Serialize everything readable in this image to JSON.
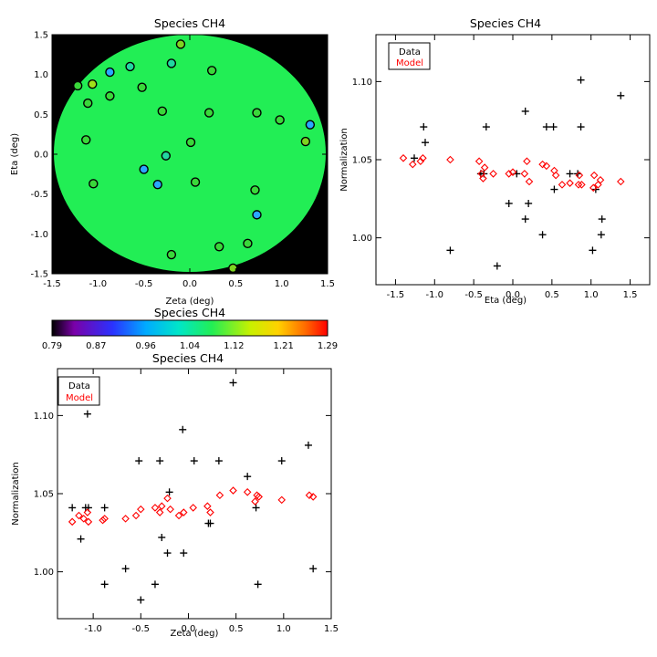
{
  "chart_data": [
    {
      "id": "map",
      "type": "scatter",
      "title": "Species CH4",
      "xlabel": "Zeta (deg)",
      "ylabel": "Eta (deg)",
      "xlim": [
        -1.5,
        1.5
      ],
      "ylim": [
        -1.5,
        1.5
      ],
      "xticks": [
        "-1.5",
        "-1.0",
        "-0.5",
        "0.0",
        "0.5",
        "1.0",
        "1.5"
      ],
      "yticks": [
        "-1.5",
        "-1.0",
        "-0.5",
        "0.0",
        "0.5",
        "1.0",
        "1.5"
      ],
      "background_color": "#000000",
      "field_color": "#22ee55",
      "points": [
        {
          "x": -0.1,
          "y": 1.38,
          "color": "#7ed321"
        },
        {
          "x": -0.87,
          "y": 1.03,
          "color": "#2aa8ff"
        },
        {
          "x": -0.65,
          "y": 1.1,
          "color": "#22d7a0"
        },
        {
          "x": -0.2,
          "y": 1.14,
          "color": "#22d7a0"
        },
        {
          "x": 0.24,
          "y": 1.05,
          "color": "#3ad83a"
        },
        {
          "x": -1.22,
          "y": 0.86,
          "color": "#3ad83a"
        },
        {
          "x": -1.06,
          "y": 0.88,
          "color": "#a0e01a"
        },
        {
          "x": -0.87,
          "y": 0.73,
          "color": "#3ad83a"
        },
        {
          "x": -0.52,
          "y": 0.84,
          "color": "#3ad83a"
        },
        {
          "x": -1.11,
          "y": 0.64,
          "color": "#3ad83a"
        },
        {
          "x": -0.3,
          "y": 0.54,
          "color": "#3ad83a"
        },
        {
          "x": 0.21,
          "y": 0.52,
          "color": "#3ad83a"
        },
        {
          "x": 0.73,
          "y": 0.52,
          "color": "#3ad83a"
        },
        {
          "x": 0.98,
          "y": 0.43,
          "color": "#3ad83a"
        },
        {
          "x": 1.31,
          "y": 0.37,
          "color": "#2aa8ff"
        },
        {
          "x": -1.13,
          "y": 0.18,
          "color": "#3ad83a"
        },
        {
          "x": 0.01,
          "y": 0.15,
          "color": "#3ad83a"
        },
        {
          "x": 1.26,
          "y": 0.16,
          "color": "#7ed321"
        },
        {
          "x": -0.26,
          "y": -0.02,
          "color": "#22d7a0"
        },
        {
          "x": -0.5,
          "y": -0.19,
          "color": "#2aa8ff"
        },
        {
          "x": -0.35,
          "y": -0.38,
          "color": "#2aa8ff"
        },
        {
          "x": -1.05,
          "y": -0.37,
          "color": "#3ad83a"
        },
        {
          "x": 0.06,
          "y": -0.35,
          "color": "#3ad83a"
        },
        {
          "x": 0.71,
          "y": -0.45,
          "color": "#3ad83a"
        },
        {
          "x": 0.73,
          "y": -0.76,
          "color": "#2aa8ff"
        },
        {
          "x": -0.2,
          "y": -1.26,
          "color": "#3ad83a"
        },
        {
          "x": 0.32,
          "y": -1.16,
          "color": "#3ad83a"
        },
        {
          "x": 0.63,
          "y": -1.12,
          "color": "#3ad83a"
        },
        {
          "x": 0.47,
          "y": -1.43,
          "color": "#7ed321"
        }
      ]
    },
    {
      "id": "colorbar",
      "type": "heatmap",
      "title": "Species CH4",
      "range": [
        0.79,
        1.29
      ],
      "tick_labels": [
        "0.79",
        "0.87",
        "0.96",
        "1.04",
        "1.12",
        "1.21",
        "1.29"
      ]
    },
    {
      "id": "eta",
      "type": "scatter",
      "title": "Species CH4",
      "xlabel": "Eta (deg)",
      "ylabel": "Normalization",
      "xlim": [
        -1.75,
        1.75
      ],
      "ylim": [
        0.97,
        1.13
      ],
      "xticks": [
        "-1.5",
        "-1.0",
        "-0.5",
        "0.0",
        "0.5",
        "1.0",
        "1.5"
      ],
      "yticks": [
        "1.00",
        "1.05",
        "1.10"
      ],
      "legend": [
        "Data",
        "Model"
      ],
      "legend_colors": [
        "#000000",
        "#ff0000"
      ],
      "legend_position": "top-left",
      "series": [
        {
          "name": "Data",
          "marker": "plus",
          "color": "#000000",
          "x": [
            -1.26,
            -1.14,
            -1.12,
            -0.8,
            -0.41,
            -0.37,
            -0.34,
            -0.05,
            -0.2,
            0.16,
            0.16,
            0.2,
            0.38,
            0.43,
            0.52,
            0.53,
            0.73,
            0.83,
            0.87,
            0.87,
            1.02,
            1.06,
            1.13,
            1.14,
            1.38,
            0.05
          ],
          "y": [
            1.051,
            1.071,
            1.061,
            0.992,
            1.041,
            1.041,
            1.071,
            1.022,
            0.982,
            1.081,
            1.012,
            1.022,
            1.002,
            1.071,
            1.071,
            1.031,
            1.041,
            1.041,
            1.101,
            1.071,
            0.992,
            1.031,
            1.002,
            1.012,
            1.091,
            1.041
          ]
        },
        {
          "name": "Model",
          "marker": "diamond",
          "color": "#ff0000",
          "x": [
            -1.4,
            -1.28,
            -1.18,
            -1.15,
            -0.8,
            -0.43,
            -0.4,
            -0.38,
            -0.36,
            -0.25,
            -0.05,
            0.15,
            0.18,
            0.21,
            0.38,
            0.43,
            0.53,
            0.55,
            0.63,
            0.73,
            0.84,
            0.85,
            0.88,
            1.03,
            1.04,
            1.09,
            1.12,
            1.38,
            0.0
          ],
          "y": [
            1.051,
            1.047,
            1.049,
            1.051,
            1.05,
            1.049,
            1.041,
            1.038,
            1.045,
            1.041,
            1.041,
            1.041,
            1.049,
            1.036,
            1.047,
            1.046,
            1.043,
            1.04,
            1.034,
            1.035,
            1.034,
            1.04,
            1.034,
            1.032,
            1.04,
            1.034,
            1.037,
            1.036,
            1.042
          ]
        }
      ]
    },
    {
      "id": "zeta",
      "type": "scatter",
      "title": "Species CH4",
      "xlabel": "Zeta (deg)",
      "ylabel": "Normalization",
      "xlim": [
        -1.375,
        1.5
      ],
      "ylim": [
        0.97,
        1.13
      ],
      "xticks": [
        "-1.0",
        "-0.5",
        "0.0",
        "0.5",
        "1.0",
        "1.5"
      ],
      "yticks": [
        "1.00",
        "1.05",
        "1.10"
      ],
      "legend": [
        "Data",
        "Model"
      ],
      "legend_colors": [
        "#000000",
        "#ff0000"
      ],
      "legend_position": "top-left",
      "series": [
        {
          "name": "Data",
          "marker": "plus",
          "color": "#000000",
          "x": [
            -1.22,
            -1.13,
            -1.08,
            -1.06,
            -1.05,
            -0.88,
            -0.88,
            -0.66,
            -0.52,
            -0.5,
            -0.35,
            -0.3,
            -0.28,
            -0.22,
            -0.2,
            -0.06,
            -0.05,
            0.06,
            0.21,
            0.23,
            0.32,
            0.47,
            0.62,
            0.71,
            0.73,
            0.98,
            1.26,
            1.31
          ],
          "y": [
            1.041,
            1.021,
            1.041,
            1.101,
            1.041,
            0.992,
            1.041,
            1.002,
            1.071,
            0.982,
            0.992,
            1.071,
            1.022,
            1.012,
            1.051,
            1.091,
            1.012,
            1.071,
            1.031,
            1.031,
            1.071,
            1.121,
            1.061,
            1.041,
            0.992,
            1.071,
            1.081,
            1.002
          ]
        },
        {
          "name": "Model",
          "marker": "diamond",
          "color": "#ff0000",
          "x": [
            -1.22,
            -1.15,
            -1.1,
            -1.06,
            -1.05,
            -0.9,
            -0.88,
            -0.66,
            -0.55,
            -0.5,
            -0.35,
            -0.3,
            -0.28,
            -0.22,
            -0.19,
            -0.1,
            -0.05,
            0.05,
            0.2,
            0.23,
            0.33,
            0.47,
            0.62,
            0.7,
            0.72,
            0.74,
            0.98,
            1.27,
            1.31
          ],
          "y": [
            1.032,
            1.036,
            1.034,
            1.038,
            1.032,
            1.033,
            1.034,
            1.034,
            1.036,
            1.04,
            1.041,
            1.038,
            1.042,
            1.047,
            1.04,
            1.036,
            1.038,
            1.041,
            1.042,
            1.038,
            1.049,
            1.052,
            1.051,
            1.045,
            1.049,
            1.048,
            1.046,
            1.049,
            1.048
          ]
        }
      ]
    }
  ]
}
